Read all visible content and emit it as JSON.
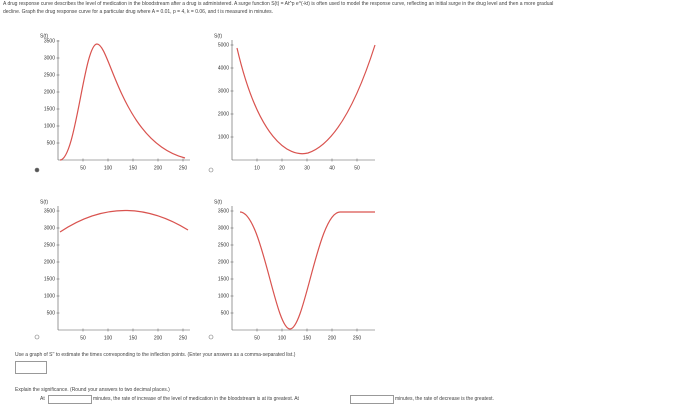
{
  "question": {
    "intro": [
      "A drug response curve describes the level of medication in the bloodstream after a drug is administered. A surge function S(t) = At^p e^(-kt) is often used to model the response curve, reflecting an initial surge in the drug level and then a more gradual",
      "decline. Graph the drug response curve for a particular drug where A = 0.01, p = 4, k = 0.06, and t is measured in minutes."
    ],
    "graphs": [
      {
        "y_label": "S(t)",
        "yticks": [
          "500",
          "1000",
          "1500",
          "2000",
          "2500",
          "3000",
          "3500"
        ],
        "xticks": [
          "50",
          "100",
          "150",
          "200",
          "250"
        ]
      },
      {
        "y_label": "S(t)",
        "yticks": [
          "1000",
          "2000",
          "3000",
          "4000",
          "5000"
        ],
        "xticks": [
          "10",
          "20",
          "30",
          "40",
          "50"
        ]
      },
      {
        "y_label": "S(t)",
        "yticks": [
          "500",
          "1000",
          "1500",
          "2000",
          "2500",
          "3000",
          "3500"
        ],
        "xticks": [
          "50",
          "100",
          "150",
          "200",
          "250"
        ]
      },
      {
        "y_label": "S(t)",
        "yticks": [
          "500",
          "1000",
          "1500",
          "2000",
          "2500",
          "3000",
          "3500"
        ],
        "xticks": [
          "50",
          "100",
          "150",
          "200",
          "250"
        ]
      }
    ],
    "inflection_prompt": "Use a graph of S'' to estimate the times corresponding to the inflection points. (Enter your answers as a comma-separated list.)",
    "explain_prompt": "Explain the significance. (Round your answers to two decimal places.)",
    "answer_row": {
      "start": "At",
      "middle": "minutes, the rate of increase of the level of medication in the bloodstream is at its greatest. At",
      "end": "minutes, the rate of decrease is the greatest."
    }
  }
}
